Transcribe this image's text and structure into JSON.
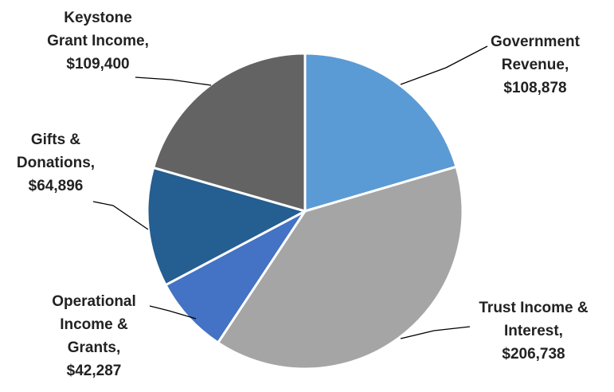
{
  "chart_data": {
    "type": "pie",
    "title": "",
    "slices": [
      {
        "name": "Government Revenue",
        "value": 108878,
        "label_lines": [
          "Government",
          "Revenue,",
          "$108,878"
        ],
        "color": "#5b9bd5"
      },
      {
        "name": "Trust Income & Interest",
        "value": 206738,
        "label_lines": [
          "Trust Income &",
          "Interest,",
          "$206,738"
        ],
        "color": "#a5a5a5"
      },
      {
        "name": "Operational Income & Grants",
        "value": 42287,
        "label_lines": [
          "Operational",
          "Income &",
          "Grants,",
          "$42,287"
        ],
        "color": "#4472c4"
      },
      {
        "name": "Gifts & Donations",
        "value": 64896,
        "label_lines": [
          "Gifts &",
          "Donations,",
          "$64,896"
        ],
        "color": "#255e91"
      },
      {
        "name": "Keystone Grant Income",
        "value": 109400,
        "label_lines": [
          "Keystone",
          "Grant Income,",
          "$109,400"
        ],
        "color": "#636363"
      }
    ],
    "start_angle_deg": 0,
    "direction": "clockwise",
    "legend": "none"
  }
}
